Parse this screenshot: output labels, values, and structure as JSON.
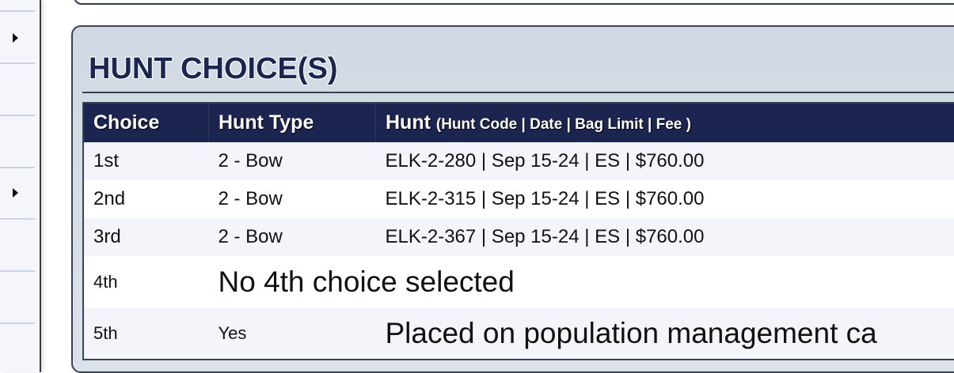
{
  "section": {
    "title": "HUNT CHOICE(S)"
  },
  "table": {
    "headers": {
      "choice": "Choice",
      "hunt_type": "Hunt Type",
      "hunt": "Hunt",
      "hunt_detail": "(Hunt Code | Date | Bag Limit | Fee )"
    },
    "rows": [
      {
        "choice": "1st",
        "hunt_type": "2 - Bow",
        "hunt": "ELK-2-280 | Sep 15-24 | ES | $760.00"
      },
      {
        "choice": "2nd",
        "hunt_type": "2 - Bow",
        "hunt": "ELK-2-315 | Sep 15-24 | ES | $760.00"
      },
      {
        "choice": "3rd",
        "hunt_type": "2 - Bow",
        "hunt": "ELK-2-367 | Sep 15-24 | ES | $760.00"
      },
      {
        "choice": "4th",
        "message": "No 4th choice selected"
      },
      {
        "choice": "5th",
        "hunt_type": "Yes",
        "message": "Placed on population management ca"
      }
    ]
  },
  "colors": {
    "header_bg": "#1b2550",
    "panel_bg": "#d3dbe5",
    "row_alt": "#f3f5fa"
  }
}
